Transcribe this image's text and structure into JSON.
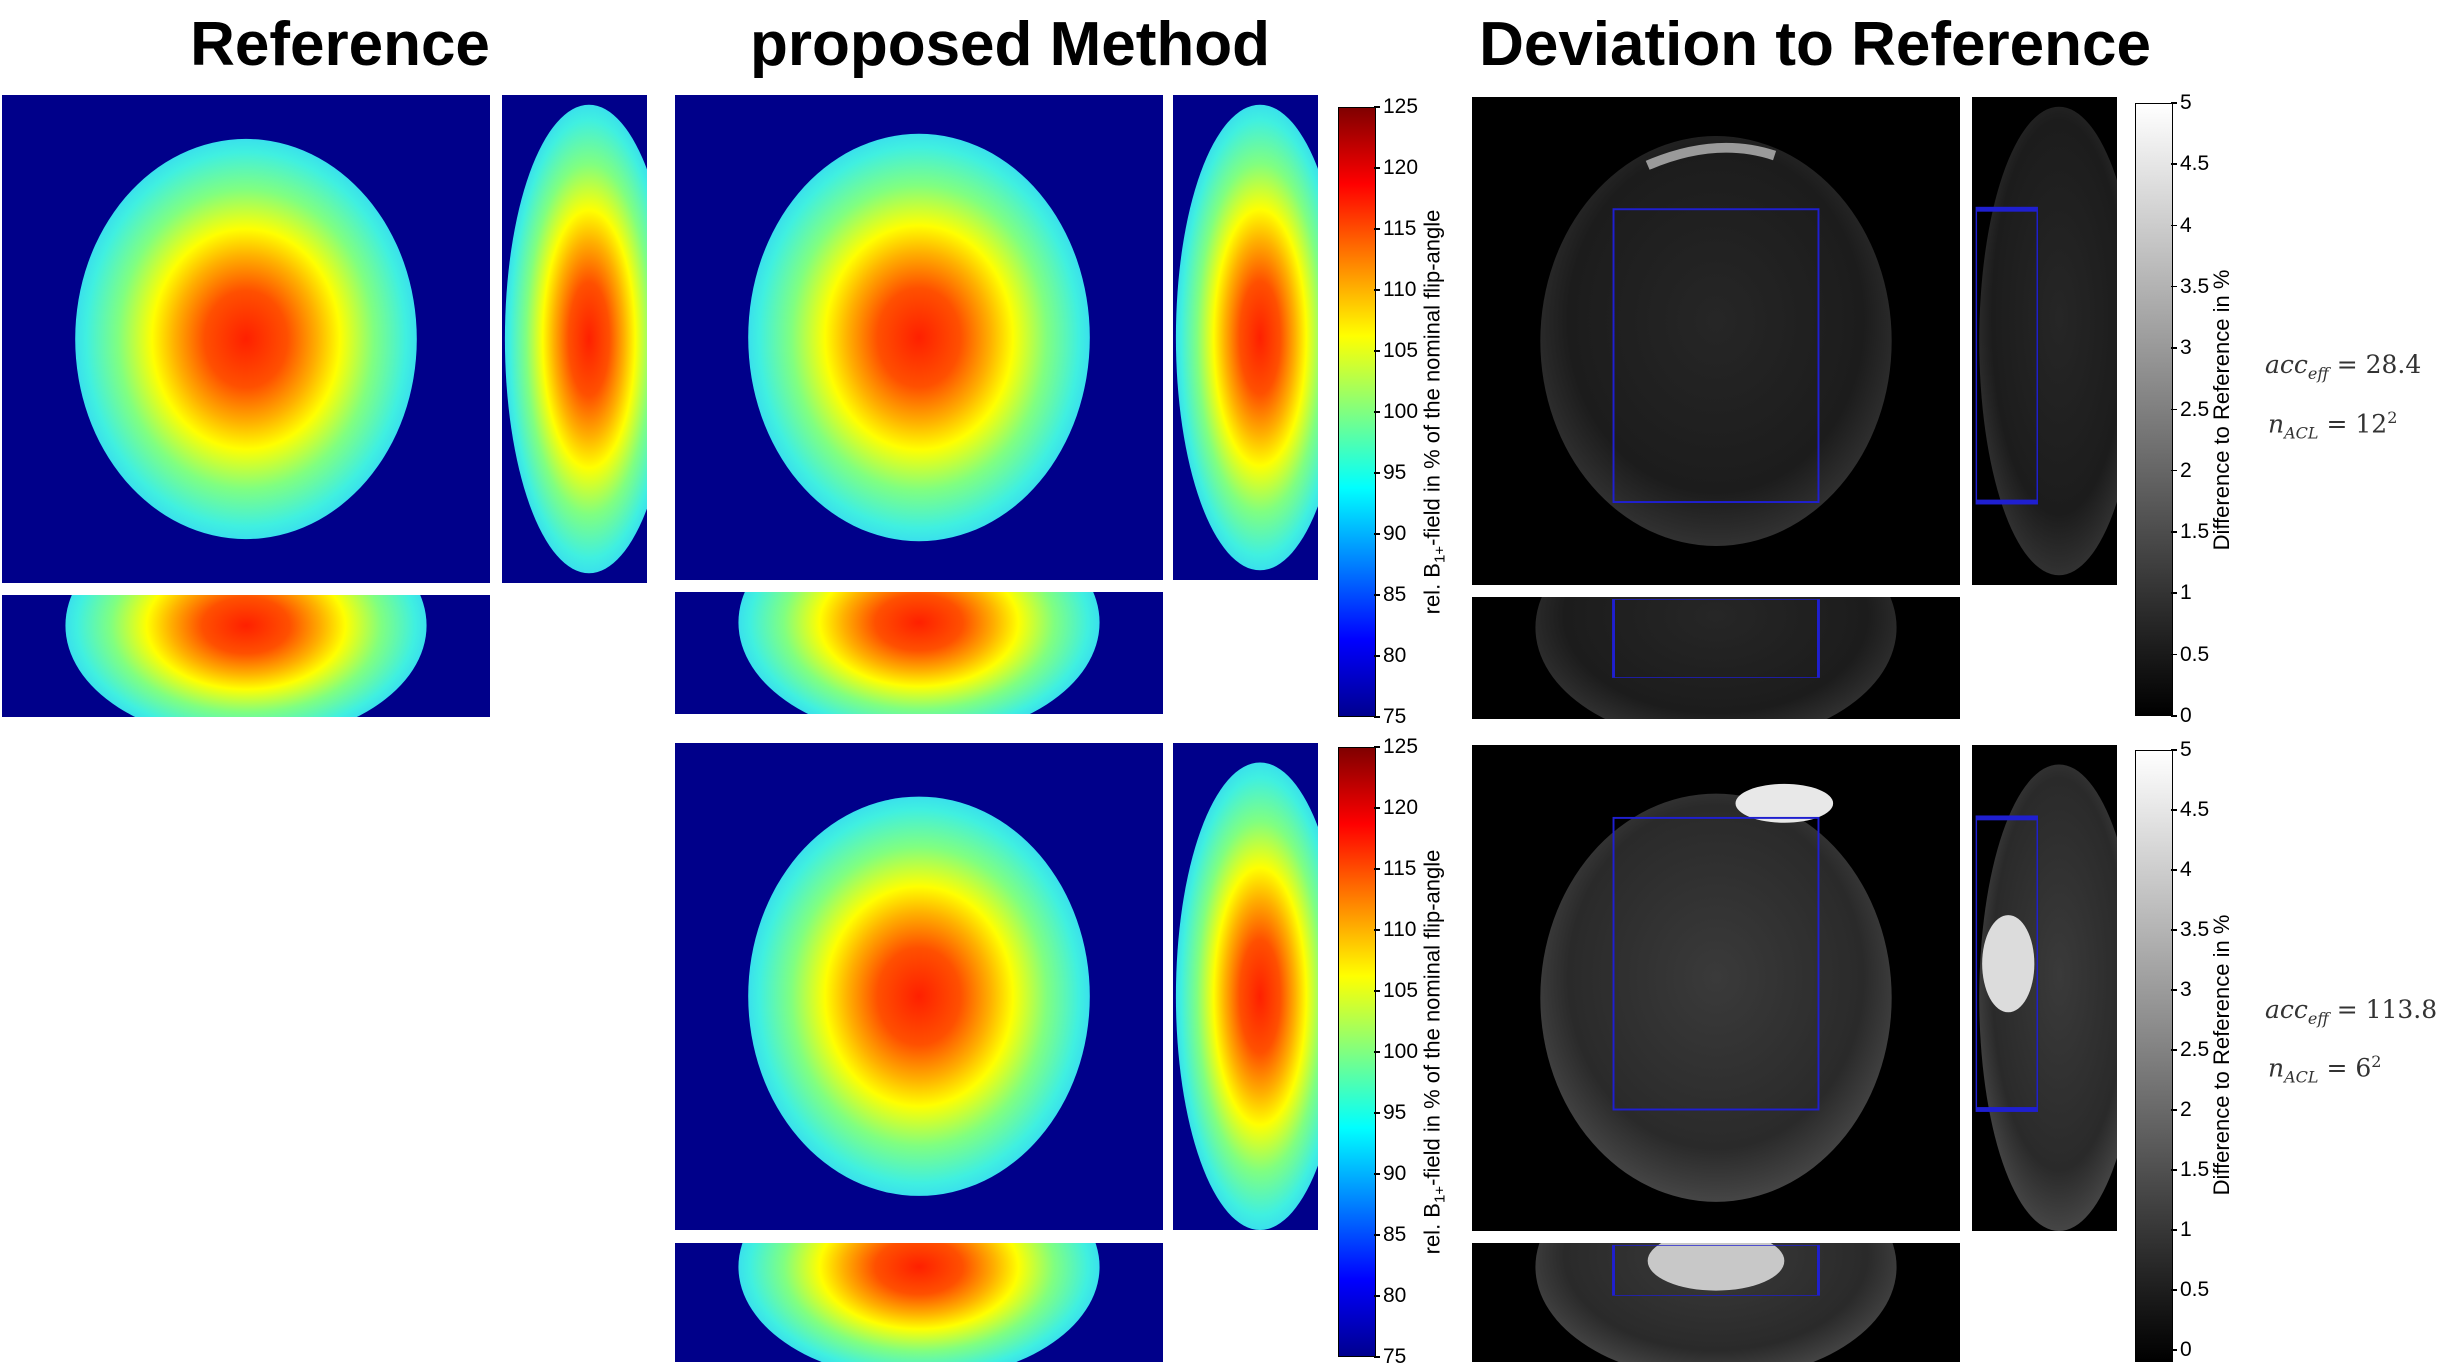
{
  "titles": {
    "reference": "Reference",
    "proposed": "proposed Method",
    "deviation": "Deviation to Reference"
  },
  "b1_colorbar": {
    "label": "rel. B1+-field in % of the nominal flip-angle",
    "label_main": "rel. B",
    "label_sub": "1+",
    "label_rest": "-field in % of the nominal flip-angle",
    "ticks": [
      "125",
      "120",
      "115",
      "110",
      "105",
      "100",
      "95",
      "90",
      "85",
      "80",
      "75"
    ],
    "colormap": "jet"
  },
  "diff_colorbar": {
    "label": "Difference to Reference in %",
    "ticks": [
      "5",
      "4.5",
      "4",
      "3.5",
      "3",
      "2.5",
      "2",
      "1.5",
      "1",
      "0.5",
      "0"
    ],
    "colormap": "gray"
  },
  "rows": [
    {
      "acc_label": "acc",
      "acc_sub": "eff",
      "acc_value": "= 28.4",
      "n_label": "n",
      "n_sub": "ACL",
      "n_value": "= 12",
      "n_sup": "2"
    },
    {
      "acc_label": "acc",
      "acc_sub": "eff",
      "acc_value": "= 113.8",
      "n_label": "n",
      "n_sub": "ACL",
      "n_value": "= 6",
      "n_sup": "2"
    }
  ],
  "colors": {
    "background_dark_blue": "#00008a",
    "roi_box": "#1f1fd0",
    "deviation_bg": "#000000"
  }
}
